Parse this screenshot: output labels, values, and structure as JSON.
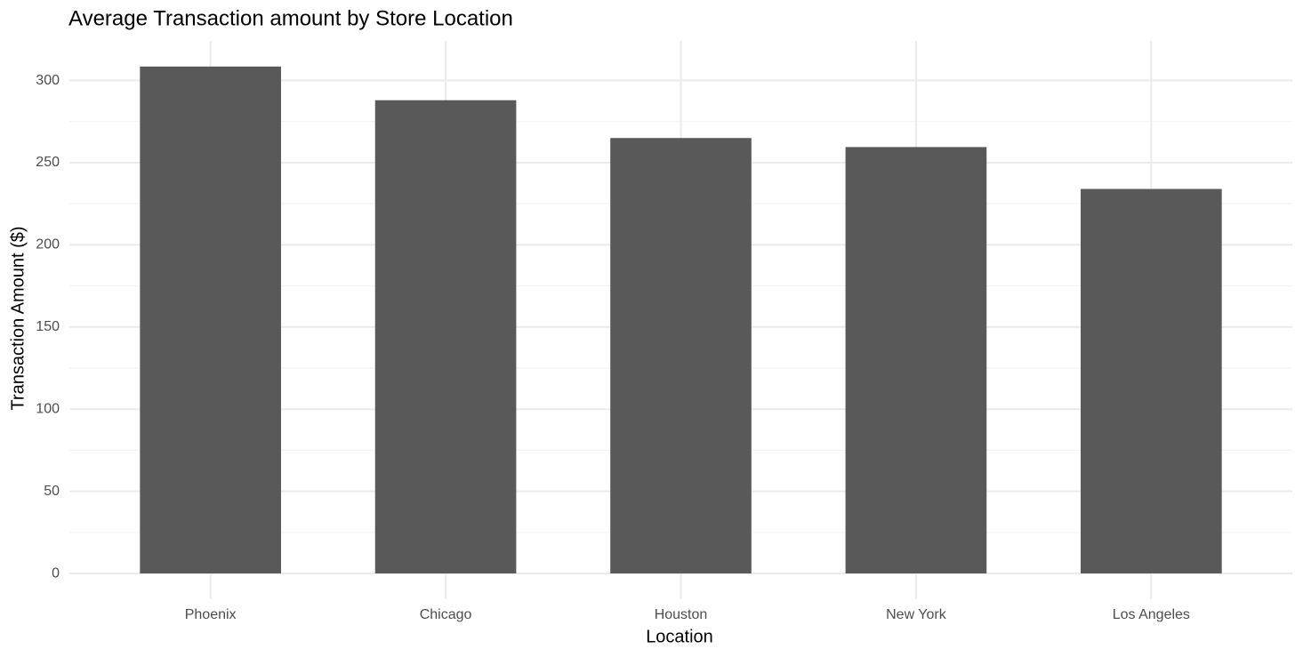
{
  "chart_data": {
    "type": "bar",
    "title": "Average Transaction amount by Store Location",
    "x_label": "Location",
    "y_label": "Transaction Amount ($)",
    "categories": [
      "Phoenix",
      "Chicago",
      "Houston",
      "New York",
      "Los Angeles"
    ],
    "values": [
      308.5,
      288,
      265,
      259.5,
      234
    ],
    "color": "#595959",
    "ylim": [
      -15.4,
      324.1
    ],
    "yticks": [
      0,
      50,
      100,
      150,
      200,
      250,
      300
    ],
    "grid": true
  }
}
